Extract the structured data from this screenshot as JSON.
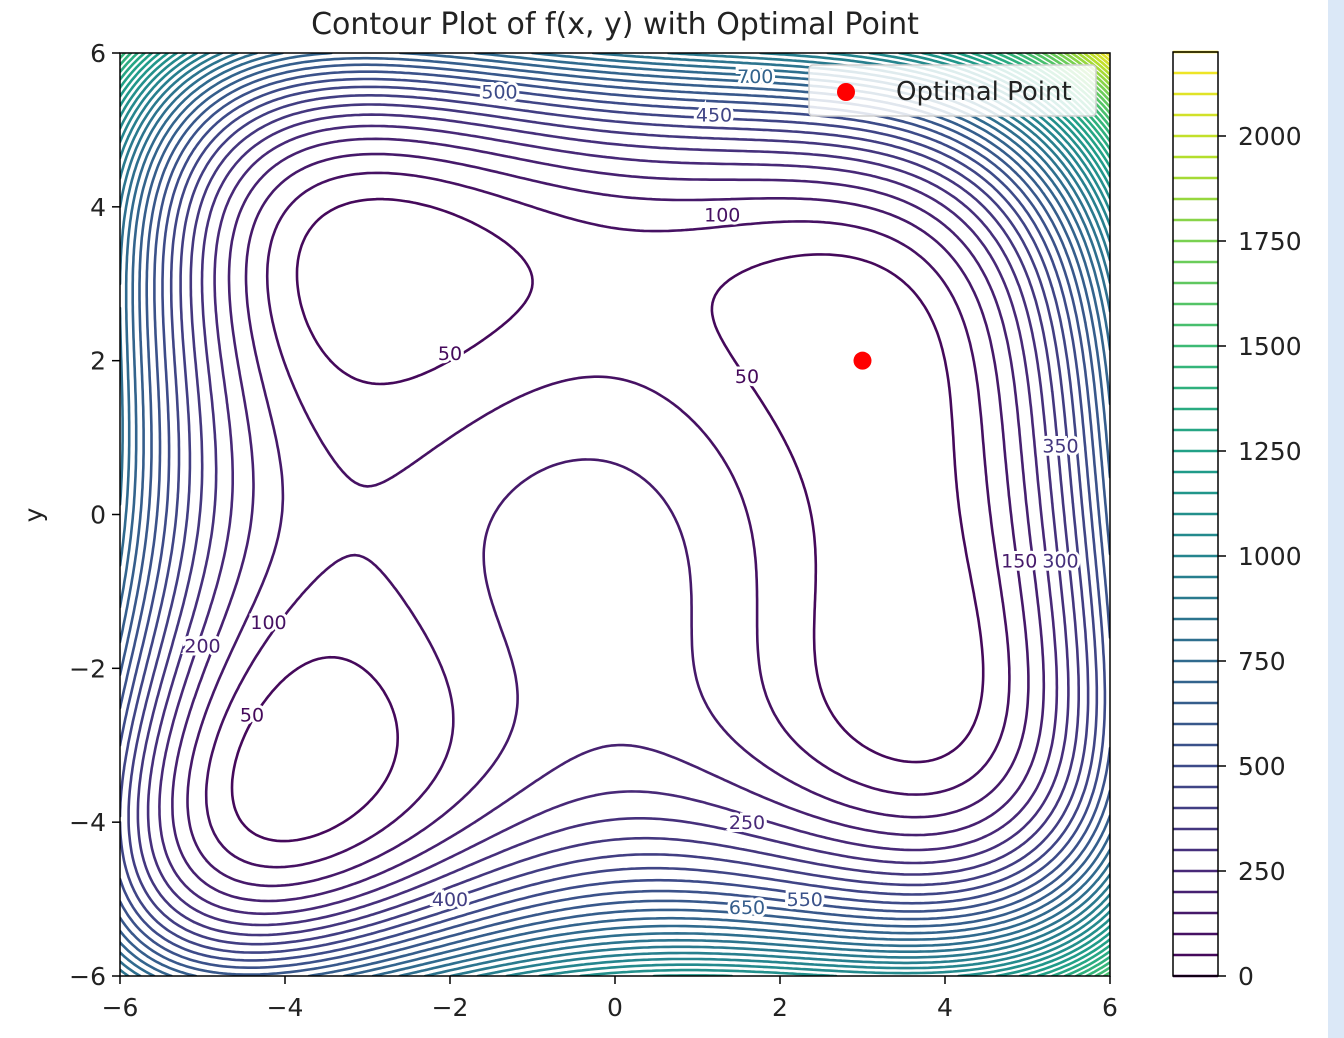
{
  "chart_data": {
    "type": "contour",
    "title": "Contour Plot of f(x, y) with Optimal Point",
    "xlabel": "",
    "ylabel": "y",
    "xlim": [
      -6,
      6
    ],
    "ylim": [
      -6,
      6
    ],
    "x_ticks": [
      -6,
      -4,
      -2,
      0,
      2,
      4,
      6
    ],
    "y_ticks": [
      -6,
      -4,
      -2,
      0,
      2,
      4,
      6
    ],
    "x_tick_labels": [
      "−6",
      "−4",
      "−2",
      "0",
      "2",
      "4",
      "6"
    ],
    "y_tick_labels": [
      "−6",
      "−4",
      "−2",
      "0",
      "2",
      "4",
      "6"
    ],
    "levels": {
      "start": 0,
      "end": 2200,
      "step": 50
    },
    "colormap": "viridis",
    "colorbar": {
      "ticks": [
        0,
        250,
        500,
        750,
        1000,
        1250,
        1500,
        1750,
        2000
      ],
      "range": [
        0,
        2200
      ]
    },
    "contour_labels": [
      {
        "text": "50",
        "x": -2.0,
        "y": 2.1
      },
      {
        "text": "100",
        "x": 1.3,
        "y": 3.9
      },
      {
        "text": "50",
        "x": 1.6,
        "y": 1.8
      },
      {
        "text": "100",
        "x": -4.2,
        "y": -1.4
      },
      {
        "text": "200",
        "x": -5.0,
        "y": -1.7
      },
      {
        "text": "50",
        "x": -4.4,
        "y": -2.6
      },
      {
        "text": "250",
        "x": 1.6,
        "y": -4.0
      },
      {
        "text": "150",
        "x": 4.9,
        "y": -0.6
      },
      {
        "text": "300",
        "x": 5.4,
        "y": -0.6
      },
      {
        "text": "350",
        "x": 5.4,
        "y": 0.9
      },
      {
        "text": "400",
        "x": -2.0,
        "y": -5.0
      },
      {
        "text": "550",
        "x": 2.3,
        "y": -5.0
      },
      {
        "text": "650",
        "x": 1.6,
        "y": -5.1
      },
      {
        "text": "450",
        "x": 1.2,
        "y": 5.2
      },
      {
        "text": "500",
        "x": -1.4,
        "y": 5.5
      },
      {
        "text": "700",
        "x": 1.7,
        "y": 5.7
      }
    ],
    "legend": {
      "label": "Optimal Point",
      "placement": "upper right"
    },
    "optimal_point": {
      "x": 3,
      "y": 2,
      "color": "#ff0000"
    }
  }
}
